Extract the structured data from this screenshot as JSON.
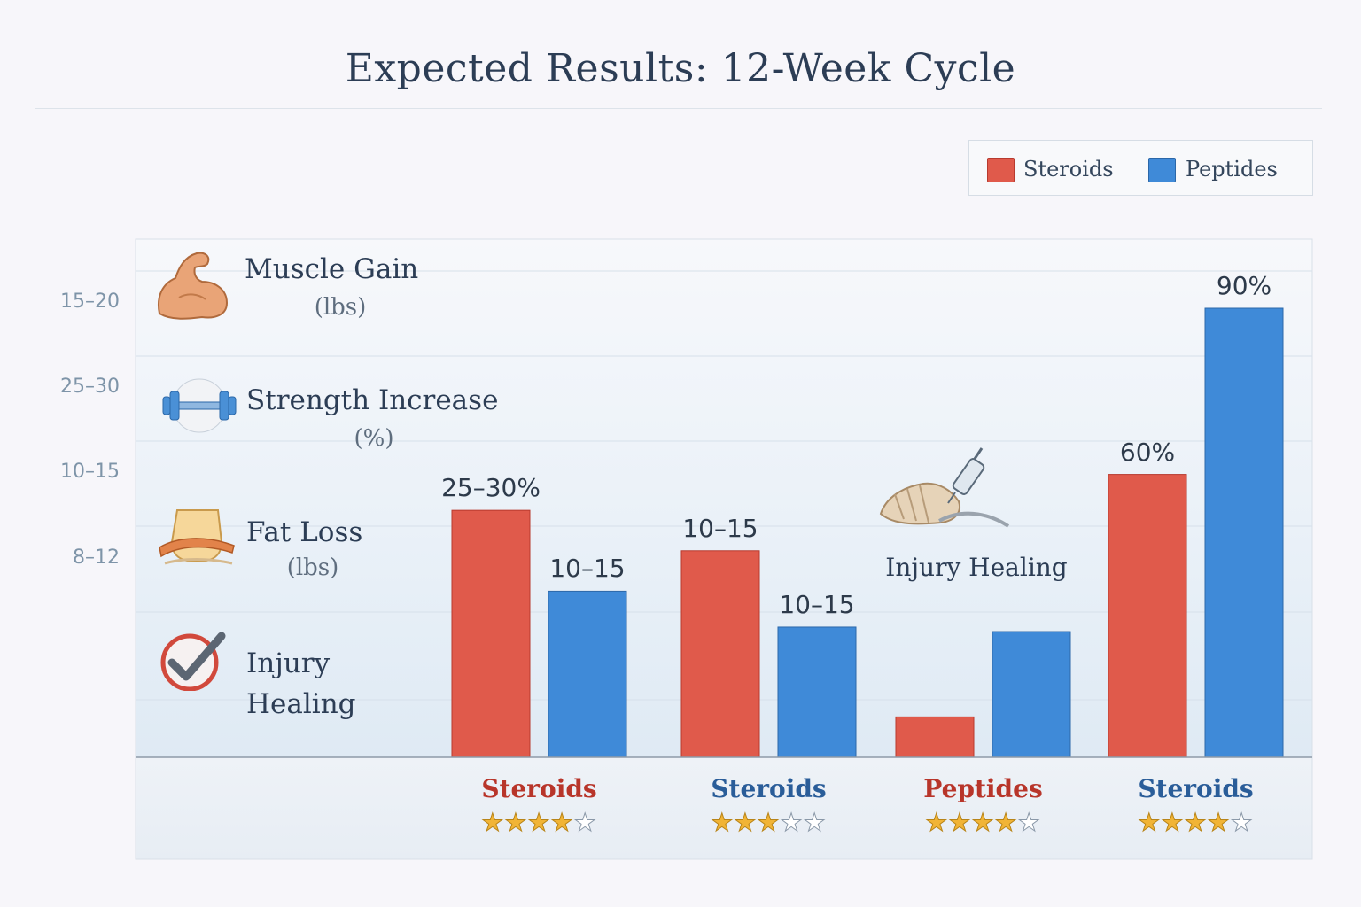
{
  "title": "Expected Results: 12-Week Cycle",
  "legend": [
    {
      "label": "Steroids",
      "color": "#e05a4b"
    },
    {
      "label": "Peptides",
      "color": "#3f8ad8"
    }
  ],
  "y_ticks": [
    "15–20",
    "25–30",
    "10–15",
    "8–12"
  ],
  "metrics": [
    {
      "label": "Muscle Gain",
      "unit": "(lbs)",
      "icon": "flexed-bicep-icon"
    },
    {
      "label": "Strength Increase",
      "unit": "(%)",
      "icon": "dumbbell-icon"
    },
    {
      "label": "Fat Loss",
      "unit": "(lbs)",
      "icon": "waist-measuring-tape-icon"
    },
    {
      "label": "Injury Healing",
      "unit": "",
      "icon": "checkmark-badge-icon"
    }
  ],
  "floating_label": "Injury Healing",
  "chart_data": {
    "type": "bar",
    "title": "Expected Results: 12-Week Cycle",
    "legend_position": "top-right",
    "grid": true,
    "ylim": [
      0,
      100
    ],
    "categories": [
      "Steroids",
      "Steroids",
      "Peptides",
      "Steroids"
    ],
    "category_colors": [
      "#b8352a",
      "#2a5d99",
      "#b8352a",
      "#2a5d99"
    ],
    "ratings": [
      4,
      3,
      4,
      4
    ],
    "series": [
      {
        "name": "Steroids",
        "color": "#e05a4b",
        "values": [
          55,
          46,
          9,
          63
        ],
        "labels": [
          "25–30%",
          "10–15",
          "",
          "60%"
        ]
      },
      {
        "name": "Peptides",
        "color": "#3f8ad8",
        "values": [
          37,
          29,
          28,
          100
        ],
        "labels": [
          "10–15",
          "10–15",
          "",
          "90%"
        ]
      }
    ]
  }
}
